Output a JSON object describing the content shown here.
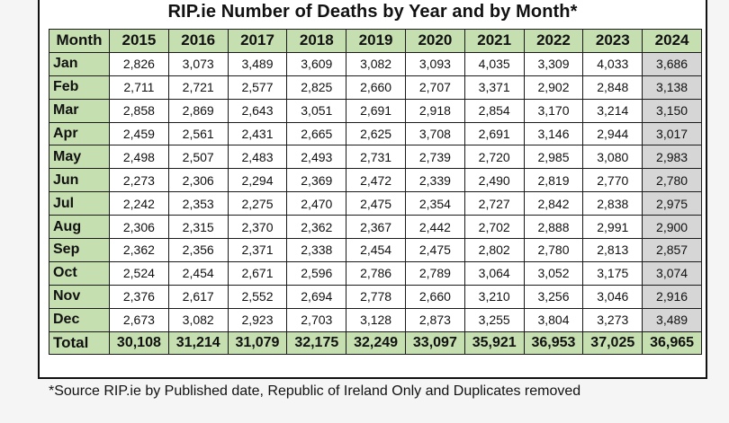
{
  "title": "RIP.ie Number of  Deaths by Year and by Month*",
  "footnote": "*Source RIP.ie by Published date, Republic of Ireland Only and Duplicates removed",
  "colors": {
    "header_bg": "#c6dfb1",
    "highlight_col_bg": "#d6d6d6",
    "border": "#1a1a1a"
  },
  "chart_data": {
    "type": "table",
    "title": "RIP.ie Number of  Deaths by Year and by Month*",
    "columns": [
      "Month",
      "2015",
      "2016",
      "2017",
      "2018",
      "2019",
      "2020",
      "2021",
      "2022",
      "2023",
      "2024"
    ],
    "rows": [
      [
        "Jan",
        "2,826",
        "3,073",
        "3,489",
        "3,609",
        "3,082",
        "3,093",
        "4,035",
        "3,309",
        "4,033",
        "3,686"
      ],
      [
        "Feb",
        "2,711",
        "2,721",
        "2,577",
        "2,825",
        "2,660",
        "2,707",
        "3,371",
        "2,902",
        "2,848",
        "3,138"
      ],
      [
        "Mar",
        "2,858",
        "2,869",
        "2,643",
        "3,051",
        "2,691",
        "2,918",
        "2,854",
        "3,170",
        "3,214",
        "3,150"
      ],
      [
        "Apr",
        "2,459",
        "2,561",
        "2,431",
        "2,665",
        "2,625",
        "3,708",
        "2,691",
        "3,146",
        "2,944",
        "3,017"
      ],
      [
        "May",
        "2,498",
        "2,507",
        "2,483",
        "2,493",
        "2,731",
        "2,739",
        "2,720",
        "2,985",
        "3,080",
        "2,983"
      ],
      [
        "Jun",
        "2,273",
        "2,306",
        "2,294",
        "2,369",
        "2,472",
        "2,339",
        "2,490",
        "2,819",
        "2,770",
        "2,780"
      ],
      [
        "Jul",
        "2,242",
        "2,353",
        "2,275",
        "2,470",
        "2,475",
        "2,354",
        "2,727",
        "2,842",
        "2,838",
        "2,975"
      ],
      [
        "Aug",
        "2,306",
        "2,315",
        "2,370",
        "2,362",
        "2,367",
        "2,442",
        "2,702",
        "2,888",
        "2,991",
        "2,900"
      ],
      [
        "Sep",
        "2,362",
        "2,356",
        "2,371",
        "2,338",
        "2,454",
        "2,475",
        "2,802",
        "2,780",
        "2,813",
        "2,857"
      ],
      [
        "Oct",
        "2,524",
        "2,454",
        "2,671",
        "2,596",
        "2,786",
        "2,789",
        "3,064",
        "3,052",
        "3,175",
        "3,074"
      ],
      [
        "Nov",
        "2,376",
        "2,617",
        "2,552",
        "2,694",
        "2,778",
        "2,660",
        "3,210",
        "3,256",
        "3,046",
        "2,916"
      ],
      [
        "Dec",
        "2,673",
        "3,082",
        "2,923",
        "2,703",
        "3,128",
        "2,873",
        "3,255",
        "3,804",
        "3,273",
        "3,489"
      ]
    ],
    "total_row": [
      "Total",
      "30,108",
      "31,214",
      "31,079",
      "32,175",
      "32,249",
      "33,097",
      "35,921",
      "36,953",
      "37,025",
      "36,965"
    ]
  }
}
